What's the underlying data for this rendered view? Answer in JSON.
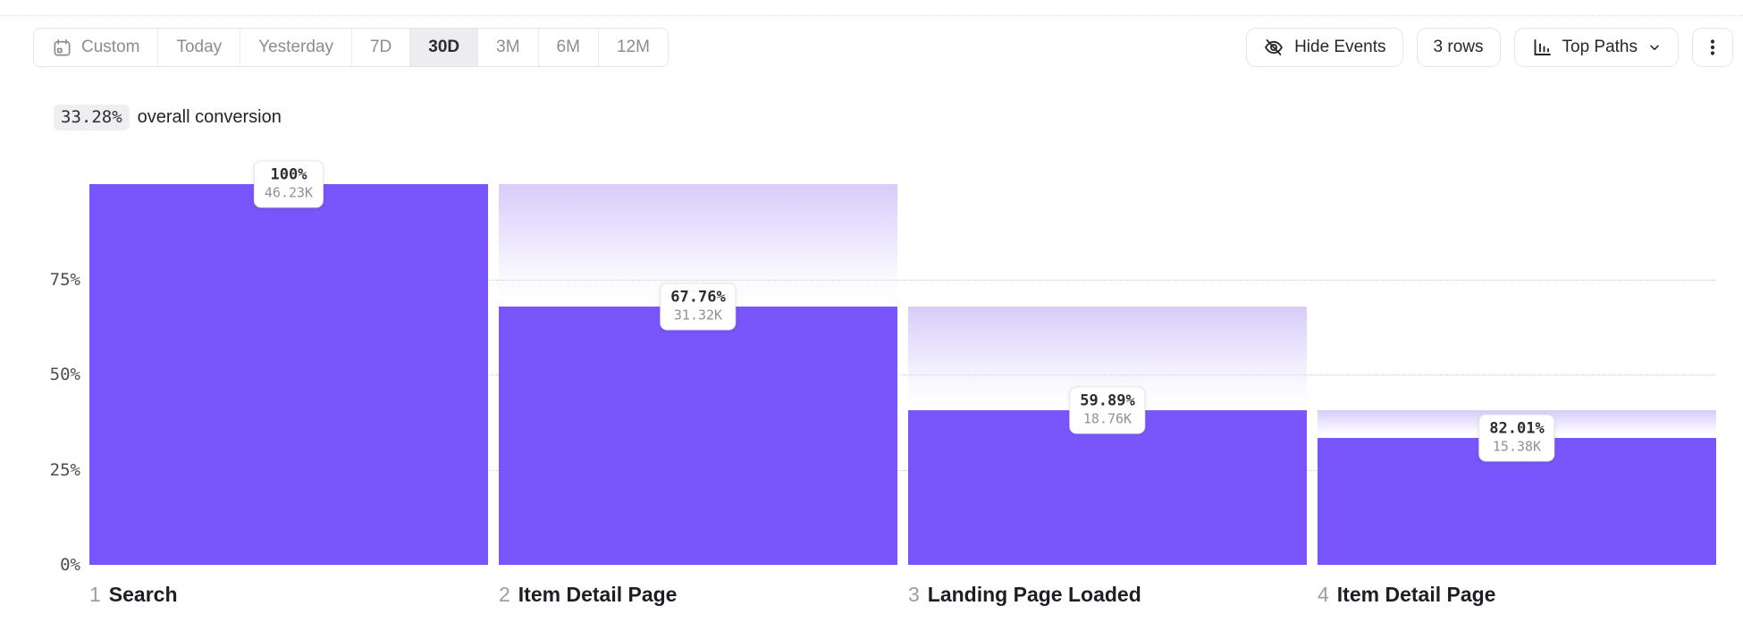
{
  "toolbar": {
    "date_ranges": [
      "Custom",
      "Today",
      "Yesterday",
      "7D",
      "30D",
      "3M",
      "6M",
      "12M"
    ],
    "selected_range": "30D",
    "hide_events_label": "Hide Events",
    "rows_label": "3 rows",
    "top_paths_label": "Top Paths"
  },
  "summary": {
    "value": "33.28%",
    "label": "overall conversion"
  },
  "chart_data": {
    "type": "bar",
    "subtype": "funnel",
    "title": "33.28% overall conversion",
    "ylim": [
      0,
      100
    ],
    "y_ticks": [
      {
        "label": "75%",
        "value": 75
      },
      {
        "label": "50%",
        "value": 50
      },
      {
        "label": "25%",
        "value": 25
      },
      {
        "label": "0%",
        "value": 0
      }
    ],
    "grid": "dotted horizontal lines at 25, 50, 75",
    "legend": "none",
    "steps": [
      {
        "index": "1",
        "name": "Search",
        "pct_label": "100%",
        "count_label": "46.23K",
        "overall_pct": 100,
        "prev_overall_pct": 100
      },
      {
        "index": "2",
        "name": "Item Detail Page",
        "pct_label": "67.76%",
        "count_label": "31.32K",
        "overall_pct": 67.76,
        "prev_overall_pct": 100
      },
      {
        "index": "3",
        "name": "Landing Page Loaded",
        "pct_label": "59.89%",
        "count_label": "18.76K",
        "overall_pct": 40.58,
        "prev_overall_pct": 67.76
      },
      {
        "index": "4",
        "name": "Item Detail Page",
        "pct_label": "82.01%",
        "count_label": "15.38K",
        "overall_pct": 33.27,
        "prev_overall_pct": 40.58
      }
    ],
    "colors": {
      "bar": "#7856fb",
      "dropoff_gradient_top": "#d7ccfa",
      "grid": "#cfcfd6",
      "selected_range_bg": "#ededf0"
    }
  }
}
